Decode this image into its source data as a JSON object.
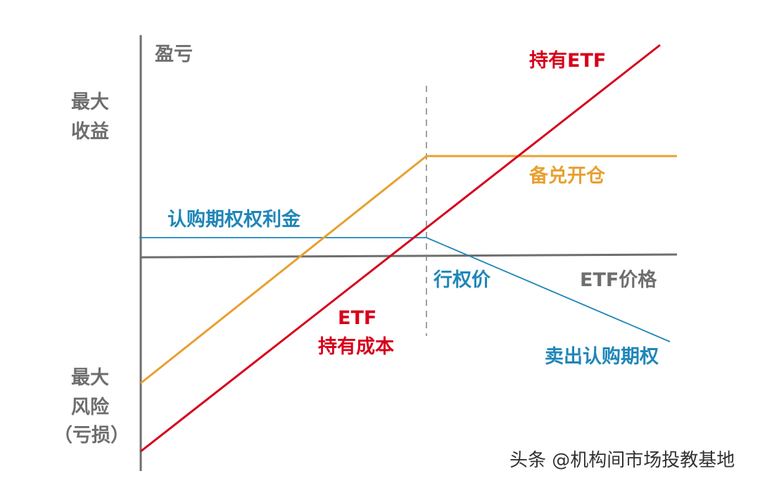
{
  "axes": {
    "y_label": "盈亏",
    "x_label": "ETF价格",
    "y_max_label_line1": "最大",
    "y_max_label_line2": "收益",
    "y_min_label_line1": "最大",
    "y_min_label_line2": "风险",
    "y_min_label_line3": "（亏损）"
  },
  "lines": {
    "hold_etf": "持有ETF",
    "covered_call": "备兑开仓",
    "premium": "认购期权权利金",
    "sell_call": "卖出认购期权"
  },
  "annotations": {
    "strike": "行权价",
    "cost_line1": "ETF",
    "cost_line2": "持有成本"
  },
  "colors": {
    "axis": "#6e6e6e",
    "hold_etf": "#d6001c",
    "covered_call": "#e8a030",
    "sell_call": "#1f86b8",
    "dashed": "#808080"
  },
  "watermark": "头条 @机构间市场投教基地"
}
